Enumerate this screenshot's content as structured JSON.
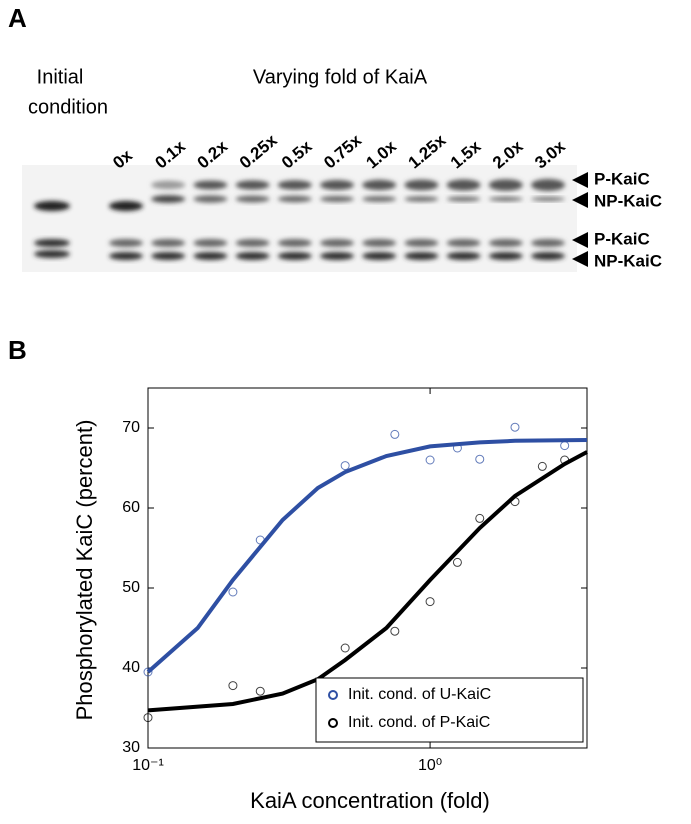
{
  "panel_a": {
    "label": "A",
    "initial_label": [
      "Initial",
      "condition"
    ],
    "title": "Varying fold of KaiA",
    "lanes": [
      "0x",
      "0.1x",
      "0.2x",
      "0.25x",
      "0.5x",
      "0.75x",
      "1.0x",
      "1.25x",
      "1.5x",
      "2.0x",
      "3.0x"
    ],
    "band_labels_top": [
      "P-KaiC",
      "NP-KaiC"
    ],
    "band_labels_bottom": [
      "P-KaiC",
      "NP-KaiC"
    ]
  },
  "chart_data": {
    "type": "scatter",
    "panel_label": "B",
    "xlabel": "KaiA concentration (fold)",
    "ylabel": "Phosphorylated KaiC (percent)",
    "xscale": "log",
    "xlim": [
      0.1,
      3.6
    ],
    "ylim": [
      30,
      75
    ],
    "xticks": [
      {
        "value": 0.1,
        "label": "10⁻¹"
      },
      {
        "value": 1,
        "label": "10⁰"
      }
    ],
    "yticks": [
      30,
      40,
      50,
      60,
      70
    ],
    "legend": "lower right",
    "series": [
      {
        "name": "Init. cond. of U-KaiC",
        "color": "#2e4fa3",
        "mode": "markers",
        "x": [
          0.1,
          0.2,
          0.25,
          0.5,
          0.75,
          1.0,
          1.25,
          1.5,
          2.0,
          3.0
        ],
        "values": [
          39.5,
          49.5,
          56,
          65.3,
          69.2,
          66,
          67.5,
          66.1,
          70.1,
          67.8
        ]
      },
      {
        "name": "Init. cond. of P-KaiC",
        "color": "#000000",
        "mode": "markers",
        "x": [
          0.1,
          0.2,
          0.25,
          0.5,
          0.75,
          1.0,
          1.25,
          1.5,
          2.0,
          2.5,
          3.0
        ],
        "values": [
          33.8,
          37.8,
          37.1,
          42.5,
          44.6,
          48.3,
          53.2,
          58.7,
          60.8,
          65.2,
          66.0
        ]
      },
      {
        "color": "#2e4fa3",
        "mode": "line",
        "x": [
          0.1,
          0.15,
          0.2,
          0.3,
          0.4,
          0.5,
          0.7,
          1,
          1.5,
          2,
          3.6
        ],
        "values": [
          39.5,
          45,
          51,
          58.5,
          62.5,
          64.5,
          66.5,
          67.7,
          68.2,
          68.4,
          68.5
        ]
      },
      {
        "color": "#000000",
        "mode": "line",
        "x": [
          0.1,
          0.2,
          0.3,
          0.4,
          0.5,
          0.7,
          1,
          1.5,
          2,
          3,
          3.6
        ],
        "values": [
          34.7,
          35.5,
          36.8,
          38.6,
          41,
          45,
          51,
          57.5,
          61.5,
          65.5,
          67
        ]
      }
    ]
  }
}
